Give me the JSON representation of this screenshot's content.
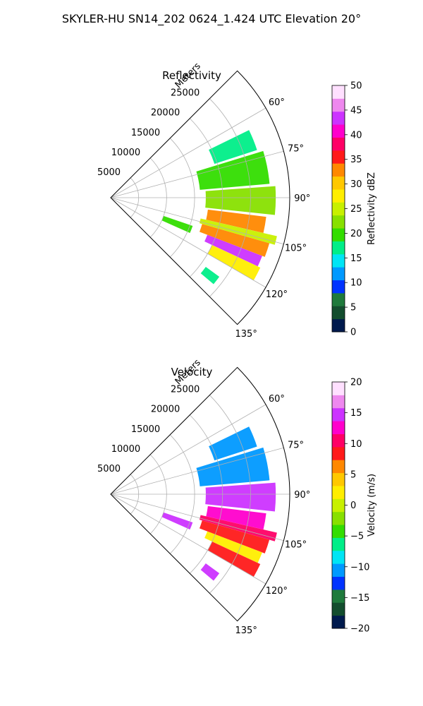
{
  "figure": {
    "suptitle": "SKYLER-HU  SN14_202  0624_1.424 UTC Elevation 20°"
  },
  "chart_data": [
    {
      "type": "heatmap",
      "projection": "polar-sector",
      "title": "Reflectivity",
      "radial_axis_label": "Meters",
      "r_ticks": [
        5000,
        10000,
        15000,
        20000,
        25000
      ],
      "r_tick_labels": [
        "5000",
        "10000",
        "15000",
        "20000",
        "25000"
      ],
      "rlim": [
        0,
        32000
      ],
      "azimuth_ticks": [
        60,
        75,
        90,
        105,
        120,
        135
      ],
      "azimuth_tick_labels": [
        "60°",
        "75°",
        "90°",
        "105°",
        "120°",
        "135°"
      ],
      "azimuth_range": [
        45,
        135
      ],
      "grid": true,
      "colorbar": {
        "label": "Reflectivity dBZ",
        "range": [
          0,
          50
        ],
        "ticks": [
          0,
          5,
          10,
          15,
          20,
          25,
          30,
          35,
          40,
          45,
          50
        ],
        "tick_labels": [
          "0",
          "5",
          "10",
          "15",
          "20",
          "25",
          "30",
          "35",
          "40",
          "45",
          "50"
        ],
        "colormap": [
          "#001a4d",
          "#134d2e",
          "#1f7a3c",
          "#0033ff",
          "#0099ff",
          "#00e5f5",
          "#00ee88",
          "#33dd00",
          "#88e000",
          "#c8f000",
          "#ffee00",
          "#ffc800",
          "#ff8800",
          "#ff1a1a",
          "#ff0066",
          "#ff00cc",
          "#cc33ff",
          "#ee88ee",
          "#ffe0ff"
        ]
      },
      "echoes": [
        {
          "az": [
            64,
            72
          ],
          "r": [
            19500,
            27500
          ],
          "value": 18
        },
        {
          "az": [
            73,
            85
          ],
          "r": [
            16000,
            28500
          ],
          "value": 20
        },
        {
          "az": [
            86,
            96
          ],
          "r": [
            17000,
            29500
          ],
          "value": 22
        },
        {
          "az": [
            97,
            103
          ],
          "r": [
            17500,
            28000
          ],
          "value": 33
        },
        {
          "az": [
            103,
            106
          ],
          "r": [
            16500,
            30500
          ],
          "value": 25
        },
        {
          "az": [
            106,
            111
          ],
          "r": [
            17000,
            29500
          ],
          "value": 32
        },
        {
          "az": [
            111,
            115
          ],
          "r": [
            18500,
            29000
          ],
          "value": 43
        },
        {
          "az": [
            115,
            120
          ],
          "r": [
            20000,
            29500
          ],
          "value": 28
        },
        {
          "az": [
            109,
            114
          ],
          "r": [
            10000,
            15500
          ],
          "value": 20
        },
        {
          "az": [
            126,
            130
          ],
          "r": [
            21000,
            24000
          ],
          "value": 18
        }
      ]
    },
    {
      "type": "heatmap",
      "projection": "polar-sector",
      "title": "Velocity",
      "radial_axis_label": "Meters",
      "r_ticks": [
        5000,
        10000,
        15000,
        20000,
        25000
      ],
      "r_tick_labels": [
        "5000",
        "10000",
        "15000",
        "20000",
        "25000"
      ],
      "rlim": [
        0,
        32000
      ],
      "azimuth_ticks": [
        60,
        75,
        90,
        105,
        120,
        135
      ],
      "azimuth_tick_labels": [
        "60°",
        "75°",
        "90°",
        "105°",
        "120°",
        "135°"
      ],
      "azimuth_range": [
        45,
        135
      ],
      "grid": true,
      "colorbar": {
        "label": "Velocity (m/s)",
        "range": [
          -20,
          20
        ],
        "ticks": [
          -20,
          -15,
          -10,
          -5,
          0,
          5,
          10,
          15,
          20
        ],
        "tick_labels": [
          "−20",
          "−15",
          "−10",
          "−5",
          "0",
          "5",
          "10",
          "15",
          "20"
        ],
        "colormap": [
          "#001a4d",
          "#134d2e",
          "#1f7a3c",
          "#0033ff",
          "#0099ff",
          "#00e5f5",
          "#00ee88",
          "#33dd00",
          "#88e000",
          "#c8f000",
          "#ffee00",
          "#ffc800",
          "#ff8800",
          "#ff1a1a",
          "#ff0066",
          "#ff00cc",
          "#cc33ff",
          "#ee88ee",
          "#ffe0ff"
        ]
      },
      "echoes": [
        {
          "az": [
            64,
            72
          ],
          "r": [
            19500,
            27500
          ],
          "value": -10
        },
        {
          "az": [
            73,
            85
          ],
          "r": [
            16000,
            28500
          ],
          "value": -11
        },
        {
          "az": [
            86,
            96
          ],
          "r": [
            17000,
            29500
          ],
          "value": 15
        },
        {
          "az": [
            97,
            103
          ],
          "r": [
            17500,
            28000
          ],
          "value": 13
        },
        {
          "az": [
            103,
            106
          ],
          "r": [
            16500,
            30500
          ],
          "value": 11
        },
        {
          "az": [
            106,
            111
          ],
          "r": [
            17000,
            29500
          ],
          "value": 9
        },
        {
          "az": [
            111,
            115
          ],
          "r": [
            18500,
            29000
          ],
          "value": 3
        },
        {
          "az": [
            115,
            120
          ],
          "r": [
            20000,
            29500
          ],
          "value": 9
        },
        {
          "az": [
            109,
            114
          ],
          "r": [
            10000,
            15500
          ],
          "value": 15
        },
        {
          "az": [
            126,
            130
          ],
          "r": [
            21000,
            24000
          ],
          "value": 14
        }
      ]
    }
  ]
}
